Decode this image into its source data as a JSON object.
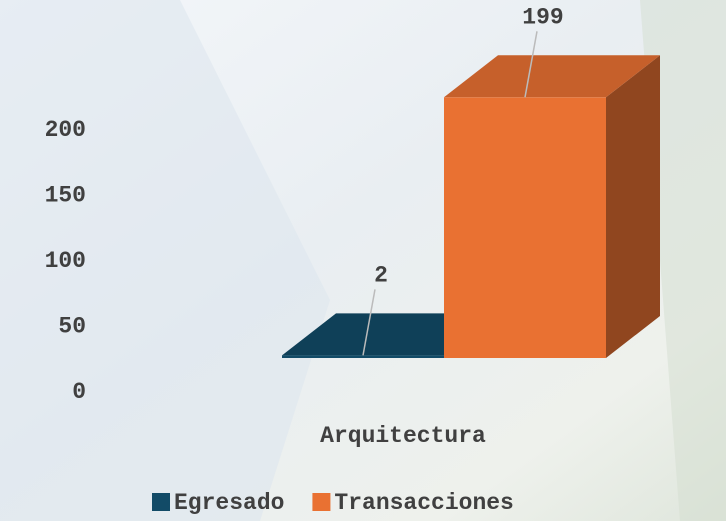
{
  "chart_data": {
    "type": "bar3d",
    "categories": [
      "Arquitectura"
    ],
    "series": [
      {
        "name": "Egresado",
        "color": "#124b67",
        "values": [
          2
        ]
      },
      {
        "name": "Transacciones",
        "color": "#e97132",
        "values": [
          199
        ]
      }
    ],
    "ylim": [
      0,
      200
    ],
    "yticks": [
      0,
      50,
      100,
      150,
      200
    ],
    "legend": "bottom"
  }
}
